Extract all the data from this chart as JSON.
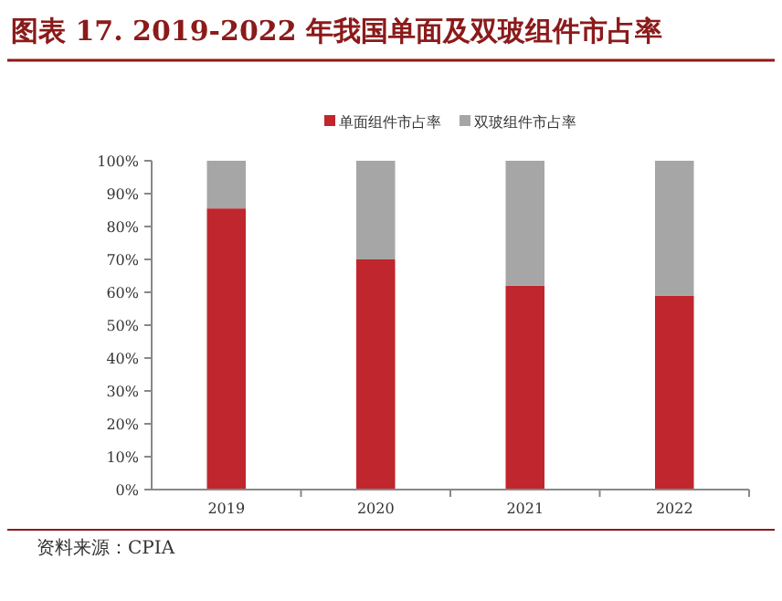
{
  "chart_data": {
    "type": "bar",
    "stacked": true,
    "title": "图表 17. 2019-2022 年我国单面及双玻组件市占率",
    "categories": [
      "2019",
      "2020",
      "2021",
      "2022"
    ],
    "series": [
      {
        "name": "单面组件市占率",
        "color": "#c0262d",
        "values": [
          85.5,
          70,
          62,
          59
        ]
      },
      {
        "name": "双玻组件市占率",
        "color": "#a6a6a6",
        "values": [
          14.5,
          30,
          38,
          41
        ]
      }
    ],
    "ylim": [
      0,
      100
    ],
    "yticks": [
      {
        "value": 0,
        "label": "0%"
      },
      {
        "value": 10,
        "label": "10%"
      },
      {
        "value": 20,
        "label": "20%"
      },
      {
        "value": 30,
        "label": "30%"
      },
      {
        "value": 40,
        "label": "40%"
      },
      {
        "value": 50,
        "label": "50%"
      },
      {
        "value": 60,
        "label": "60%"
      },
      {
        "value": 70,
        "label": "70%"
      },
      {
        "value": 80,
        "label": "80%"
      },
      {
        "value": 90,
        "label": "90%"
      },
      {
        "value": 100,
        "label": "100%"
      }
    ],
    "legend": "top",
    "grid": false,
    "annotations": [
      "资料来源：CPIA"
    ]
  }
}
